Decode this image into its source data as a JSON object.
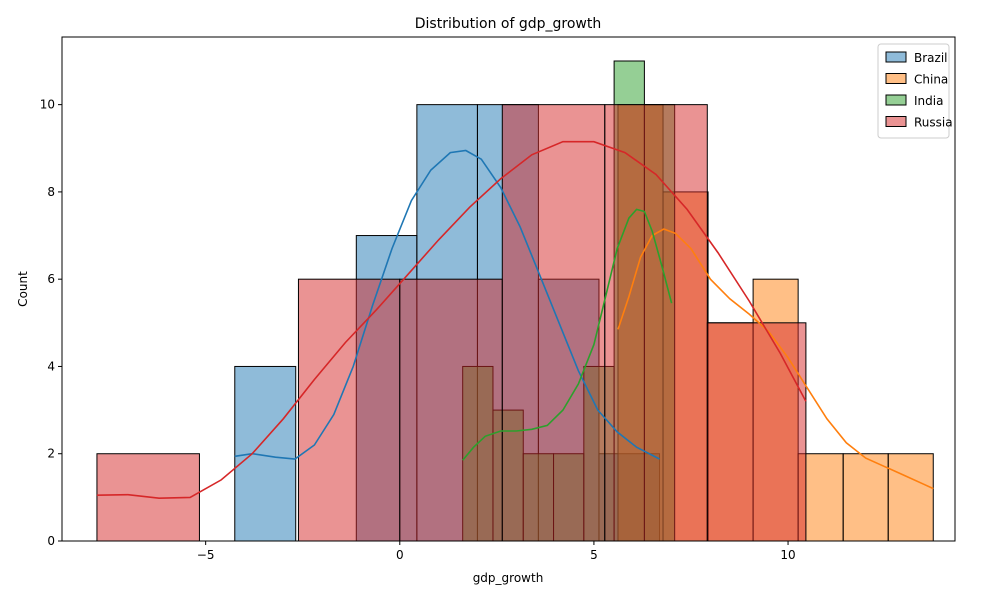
{
  "chart_data": {
    "type": "histogram",
    "title": "Distribution of gdp_growth",
    "xlabel": "gdp_growth",
    "ylabel": "Count",
    "xlim": [
      -8.7,
      14.3
    ],
    "ylim": [
      0,
      11.55
    ],
    "xticks": [
      -5,
      0,
      5,
      10
    ],
    "xtick_labels": [
      "−5",
      "0",
      "5",
      "10"
    ],
    "yticks": [
      0,
      2,
      4,
      6,
      8,
      10
    ],
    "grid": false,
    "legend_position": "top-right",
    "series": [
      {
        "name": "Brazil",
        "color": "#1f77b4",
        "bins": [
          {
            "x0": -4.25,
            "x1": -2.68,
            "count": 4
          },
          {
            "x0": -2.68,
            "x1": -1.12,
            "count": 0
          },
          {
            "x0": -1.12,
            "x1": 0.44,
            "count": 7
          },
          {
            "x0": 0.44,
            "x1": 2.0,
            "count": 10
          },
          {
            "x0": 2.0,
            "x1": 3.57,
            "count": 10
          },
          {
            "x0": 3.57,
            "x1": 5.13,
            "count": 6
          },
          {
            "x0": 5.13,
            "x1": 6.69,
            "count": 2
          }
        ],
        "kde": [
          [
            -4.25,
            1.94
          ],
          [
            -3.8,
            2.0
          ],
          [
            -3.2,
            1.92
          ],
          [
            -2.7,
            1.88
          ],
          [
            -2.2,
            2.2
          ],
          [
            -1.7,
            2.9
          ],
          [
            -1.2,
            4.0
          ],
          [
            -0.7,
            5.4
          ],
          [
            -0.2,
            6.7
          ],
          [
            0.3,
            7.8
          ],
          [
            0.8,
            8.5
          ],
          [
            1.3,
            8.9
          ],
          [
            1.7,
            8.95
          ],
          [
            2.1,
            8.75
          ],
          [
            2.6,
            8.1
          ],
          [
            3.1,
            7.2
          ],
          [
            3.6,
            6.1
          ],
          [
            4.1,
            5.0
          ],
          [
            4.6,
            3.9
          ],
          [
            5.1,
            3.0
          ],
          [
            5.6,
            2.5
          ],
          [
            6.1,
            2.15
          ],
          [
            6.69,
            1.88
          ]
        ]
      },
      {
        "name": "China",
        "color": "#ff7f0e",
        "bins": [
          {
            "x0": 5.62,
            "x1": 6.78,
            "count": 10
          },
          {
            "x0": 6.78,
            "x1": 7.94,
            "count": 8
          },
          {
            "x0": 7.94,
            "x1": 9.1,
            "count": 5
          },
          {
            "x0": 9.1,
            "x1": 10.26,
            "count": 6
          },
          {
            "x0": 10.26,
            "x1": 11.42,
            "count": 2
          },
          {
            "x0": 11.42,
            "x1": 12.58,
            "count": 2
          },
          {
            "x0": 12.58,
            "x1": 13.74,
            "count": 2
          }
        ],
        "kde": [
          [
            5.62,
            4.85
          ],
          [
            5.9,
            5.6
          ],
          [
            6.2,
            6.5
          ],
          [
            6.5,
            7.0
          ],
          [
            6.8,
            7.15
          ],
          [
            7.1,
            7.05
          ],
          [
            7.5,
            6.7
          ],
          [
            8.0,
            6.0
          ],
          [
            8.5,
            5.55
          ],
          [
            9.0,
            5.2
          ],
          [
            9.5,
            4.8
          ],
          [
            10.0,
            4.2
          ],
          [
            10.5,
            3.5
          ],
          [
            11.0,
            2.8
          ],
          [
            11.5,
            2.25
          ],
          [
            12.0,
            1.9
          ],
          [
            12.5,
            1.7
          ],
          [
            13.0,
            1.5
          ],
          [
            13.5,
            1.3
          ],
          [
            13.74,
            1.2
          ]
        ]
      },
      {
        "name": "India",
        "color": "#2ca02c",
        "bins": [
          {
            "x0": 1.62,
            "x1": 2.4,
            "count": 4
          },
          {
            "x0": 2.4,
            "x1": 3.18,
            "count": 3
          },
          {
            "x0": 3.18,
            "x1": 3.96,
            "count": 2
          },
          {
            "x0": 3.96,
            "x1": 4.74,
            "count": 2
          },
          {
            "x0": 4.74,
            "x1": 5.52,
            "count": 4
          },
          {
            "x0": 5.52,
            "x1": 6.3,
            "count": 11
          },
          {
            "x0": 6.3,
            "x1": 7.08,
            "count": 10
          }
        ],
        "kde": [
          [
            1.62,
            1.85
          ],
          [
            1.9,
            2.15
          ],
          [
            2.2,
            2.4
          ],
          [
            2.6,
            2.52
          ],
          [
            3.0,
            2.52
          ],
          [
            3.4,
            2.56
          ],
          [
            3.8,
            2.65
          ],
          [
            4.2,
            3.0
          ],
          [
            4.6,
            3.6
          ],
          [
            5.0,
            4.5
          ],
          [
            5.3,
            5.6
          ],
          [
            5.6,
            6.7
          ],
          [
            5.9,
            7.4
          ],
          [
            6.1,
            7.6
          ],
          [
            6.3,
            7.55
          ],
          [
            6.5,
            7.1
          ],
          [
            6.75,
            6.3
          ],
          [
            7.0,
            5.45
          ]
        ]
      },
      {
        "name": "Russia",
        "color": "#d62728",
        "bins": [
          {
            "x0": -7.8,
            "x1": -5.16,
            "count": 2
          },
          {
            "x0": -5.16,
            "x1": -2.61,
            "count": 0
          },
          {
            "x0": -2.61,
            "x1": 0.0,
            "count": 6
          },
          {
            "x0": 0.0,
            "x1": 2.64,
            "count": 6
          },
          {
            "x0": 2.64,
            "x1": 5.28,
            "count": 10
          },
          {
            "x0": 5.28,
            "x1": 7.92,
            "count": 10
          },
          {
            "x0": 7.92,
            "x1": 10.46,
            "count": 5
          }
        ],
        "kde": [
          [
            -7.8,
            1.05
          ],
          [
            -7.0,
            1.06
          ],
          [
            -6.2,
            0.98
          ],
          [
            -5.4,
            1.0
          ],
          [
            -4.6,
            1.4
          ],
          [
            -3.8,
            2.0
          ],
          [
            -3.0,
            2.8
          ],
          [
            -2.2,
            3.7
          ],
          [
            -1.4,
            4.55
          ],
          [
            -0.6,
            5.3
          ],
          [
            0.2,
            6.1
          ],
          [
            1.0,
            6.9
          ],
          [
            1.8,
            7.65
          ],
          [
            2.6,
            8.3
          ],
          [
            3.4,
            8.85
          ],
          [
            4.2,
            9.15
          ],
          [
            5.0,
            9.15
          ],
          [
            5.8,
            8.9
          ],
          [
            6.6,
            8.4
          ],
          [
            7.4,
            7.6
          ],
          [
            8.2,
            6.6
          ],
          [
            9.0,
            5.5
          ],
          [
            9.8,
            4.3
          ],
          [
            10.46,
            3.2
          ]
        ]
      }
    ]
  }
}
